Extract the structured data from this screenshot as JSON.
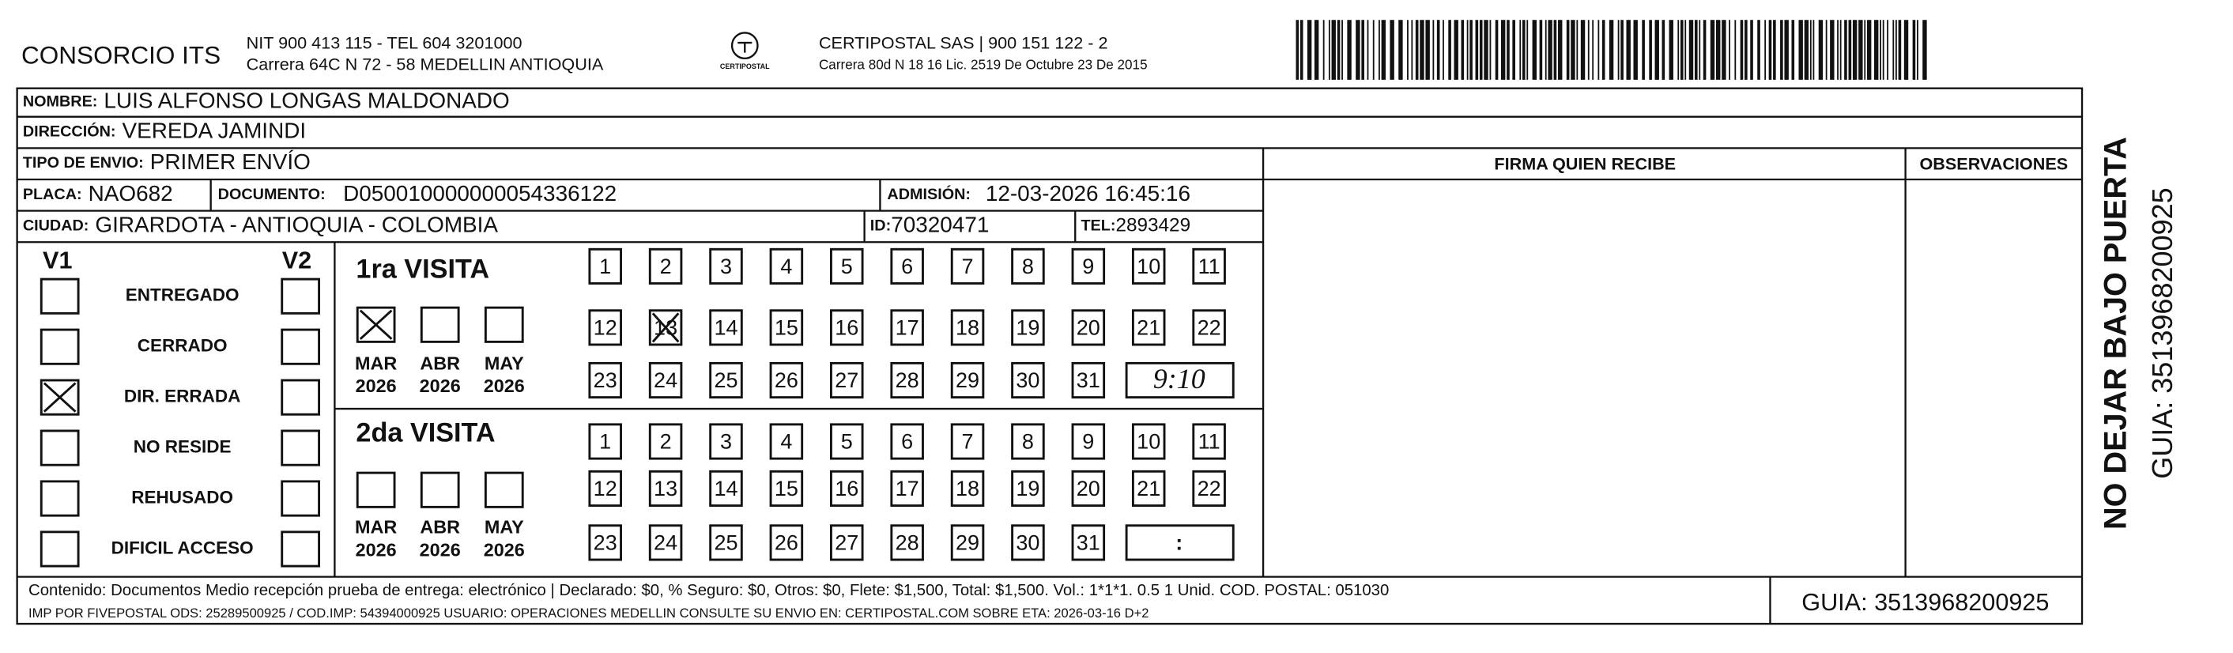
{
  "header": {
    "company": "CONSORCIO ITS",
    "company_nit": "NIT 900 413 115 - TEL 604 3201000",
    "company_address": "Carrera 64C N 72 - 58 MEDELLIN ANTIOQUIA",
    "logo_text": "CERTIPOSTAL",
    "carrier": "CERTIPOSTAL SAS | 900 151 122 - 2",
    "carrier_address": "Carrera 80d N 18 16  Lic. 2519 De Octubre 23 De 2015"
  },
  "fields": {
    "nombre": {
      "label": "NOMBRE:",
      "value": "LUIS ALFONSO LONGAS MALDONADO"
    },
    "direccion": {
      "label": "DIRECCIÓN:",
      "value": "VEREDA JAMINDI"
    },
    "tipo_envio": {
      "label": "TIPO DE ENVIO:",
      "value": "PRIMER ENVÍO"
    },
    "placa": {
      "label": "PLACA:",
      "value": "NAO682"
    },
    "documento": {
      "label": "DOCUMENTO:",
      "value": "D050010000000054336122"
    },
    "admision": {
      "label": "ADMISIÓN:",
      "value": "12-03-2026 16:45:16"
    },
    "ciudad": {
      "label": "CIUDAD:",
      "value": "GIRARDOTA - ANTIOQUIA - COLOMBIA"
    },
    "id": {
      "label": "ID:",
      "value": "70320471"
    },
    "tel": {
      "label": "TEL:",
      "value": "2893429"
    }
  },
  "columns": {
    "firma": "FIRMA QUIEN RECIBE",
    "observaciones": "OBSERVACIONES"
  },
  "status": {
    "v1_header": "V1",
    "v2_header": "V2",
    "rows": [
      {
        "label": "ENTREGADO",
        "v1": false,
        "v2": false
      },
      {
        "label": "CERRADO",
        "v1": false,
        "v2": false
      },
      {
        "label": "DIR. ERRADA",
        "v1": true,
        "v2": false
      },
      {
        "label": "NO RESIDE",
        "v1": false,
        "v2": false
      },
      {
        "label": "REHUSADO",
        "v1": false,
        "v2": false
      },
      {
        "label": "DIFICIL ACCESO",
        "v1": false,
        "v2": false
      }
    ]
  },
  "visits": [
    {
      "title": "1ra VISITA",
      "months": [
        {
          "month": "MAR",
          "year": "2026",
          "checked": true
        },
        {
          "month": "ABR",
          "year": "2026",
          "checked": false
        },
        {
          "month": "MAY",
          "year": "2026",
          "checked": false
        }
      ],
      "days": [
        1,
        2,
        3,
        4,
        5,
        6,
        7,
        8,
        9,
        10,
        11,
        12,
        13,
        14,
        15,
        16,
        17,
        18,
        19,
        20,
        21,
        22,
        23,
        24,
        25,
        26,
        27,
        28,
        29,
        30,
        31
      ],
      "marked_days": [
        13
      ],
      "time": "9:10"
    },
    {
      "title": "2da VISITA",
      "months": [
        {
          "month": "MAR",
          "year": "2026",
          "checked": false
        },
        {
          "month": "ABR",
          "year": "2026",
          "checked": false
        },
        {
          "month": "MAY",
          "year": "2026",
          "checked": false
        }
      ],
      "days": [
        1,
        2,
        3,
        4,
        5,
        6,
        7,
        8,
        9,
        10,
        11,
        12,
        13,
        14,
        15,
        16,
        17,
        18,
        19,
        20,
        21,
        22,
        23,
        24,
        25,
        26,
        27,
        28,
        29,
        30,
        31
      ],
      "marked_days": [],
      "time": ":"
    }
  ],
  "footer": {
    "content": "Contenido: Documentos Medio recepción prueba de entrega: electrónico | Declarado: $0, % Seguro: $0, Otros: $0, Flete: $1,500, Total: $1,500. Vol.: 1*1*1. 0.5  1 Unid. COD. POSTAL: 051030",
    "print_info": "IMP POR FIVEPOSTAL ODS: 25289500925 / COD.IMP: 54394000925 USUARIO: OPERACIONES MEDELLIN CONSULTE SU ENVIO EN: CERTIPOSTAL.COM SOBRE ETA: 2026-03-16 D+2",
    "guia": "GUIA: 3513968200925"
  },
  "side": {
    "warning": "NO DEJAR BAJO PUERTA",
    "guia": "GUIA: 3513968200925"
  }
}
